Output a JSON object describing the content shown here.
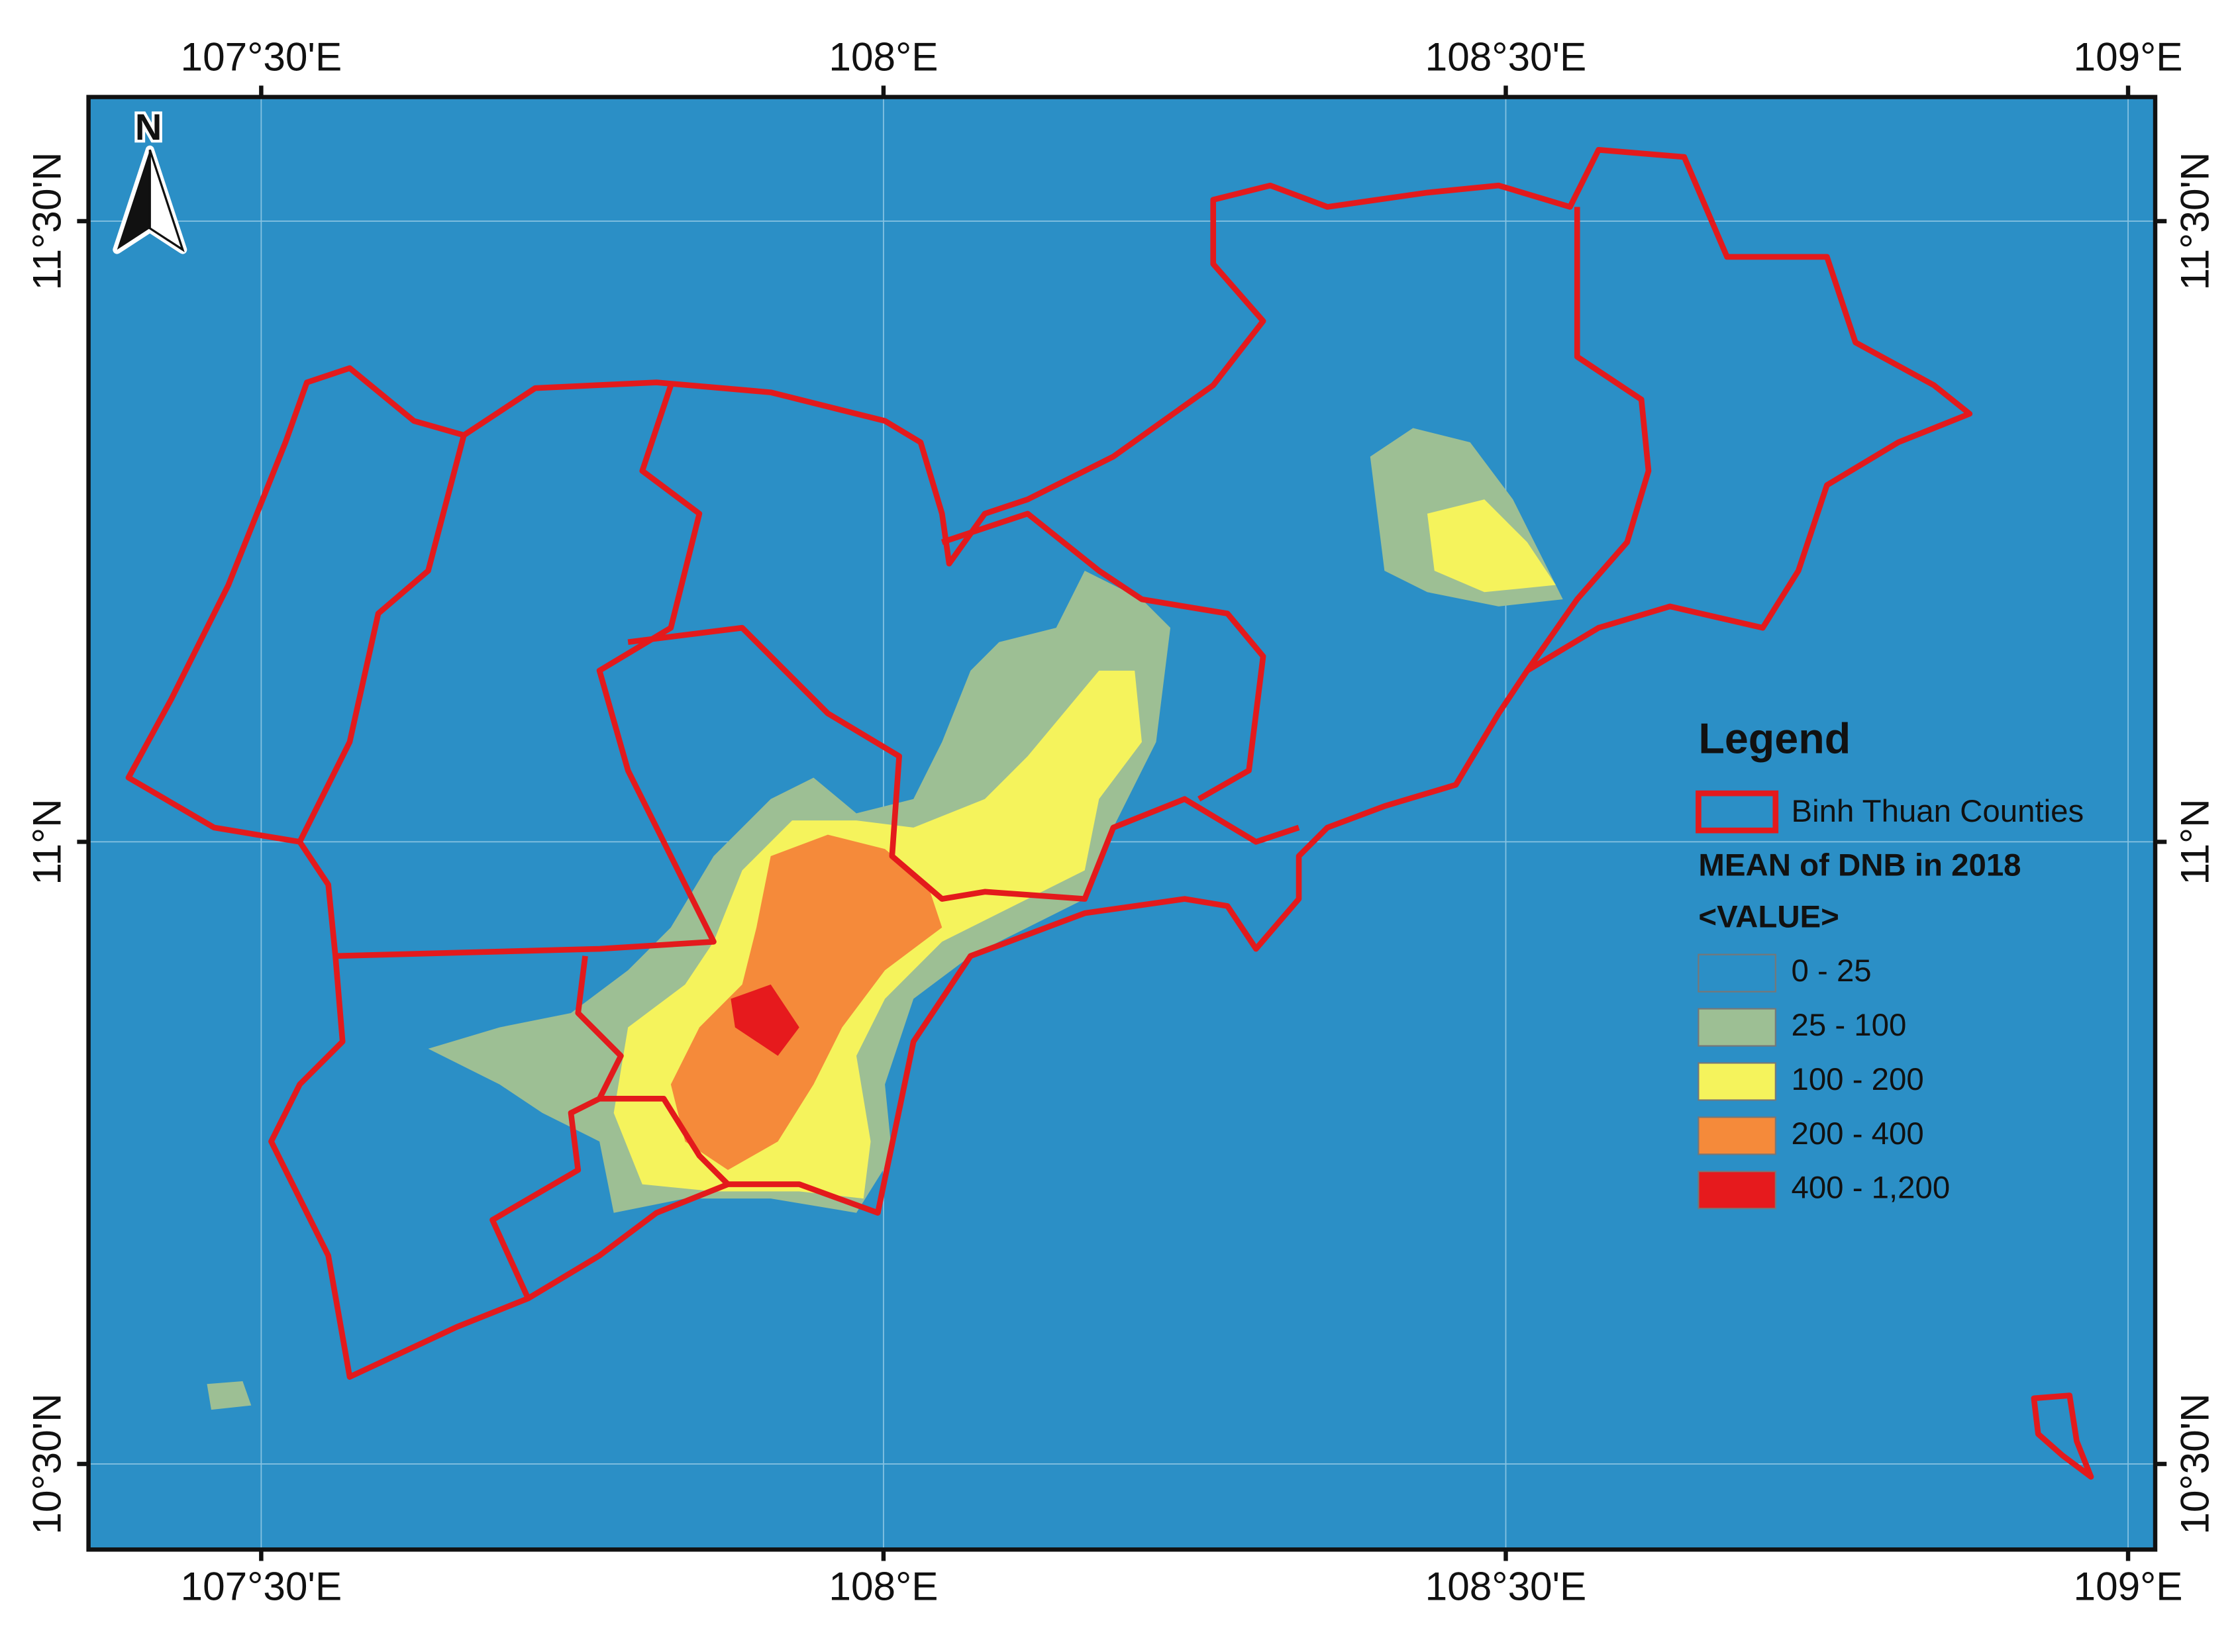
{
  "map": {
    "top_ticks": [
      "107°30'E",
      "108°E",
      "108°30'E",
      "109°E"
    ],
    "bottom_ticks": [
      "107°30'E",
      "108°E",
      "108°30'E",
      "109°E"
    ],
    "left_ticks": [
      "11°30'N",
      "11°N",
      "10°30'N"
    ],
    "right_ticks": [
      "11°30'N",
      "11°N",
      "10°30'N"
    ],
    "north": "N",
    "legend": {
      "title": "Legend",
      "layer": "Binh Thuan Counties",
      "raster_title": "MEAN of DNB in 2018",
      "field": "<VALUE>",
      "classes": [
        {
          "label": "0 - 25",
          "color": "#2b8fc6"
        },
        {
          "label": "25 - 100",
          "color": "#9dbf94"
        },
        {
          "label": "100 - 200",
          "color": "#f5f35c"
        },
        {
          "label": "200 - 400",
          "color": "#f58a3a"
        },
        {
          "label": "400 - 1,200",
          "color": "#e61a1d"
        }
      ]
    }
  }
}
